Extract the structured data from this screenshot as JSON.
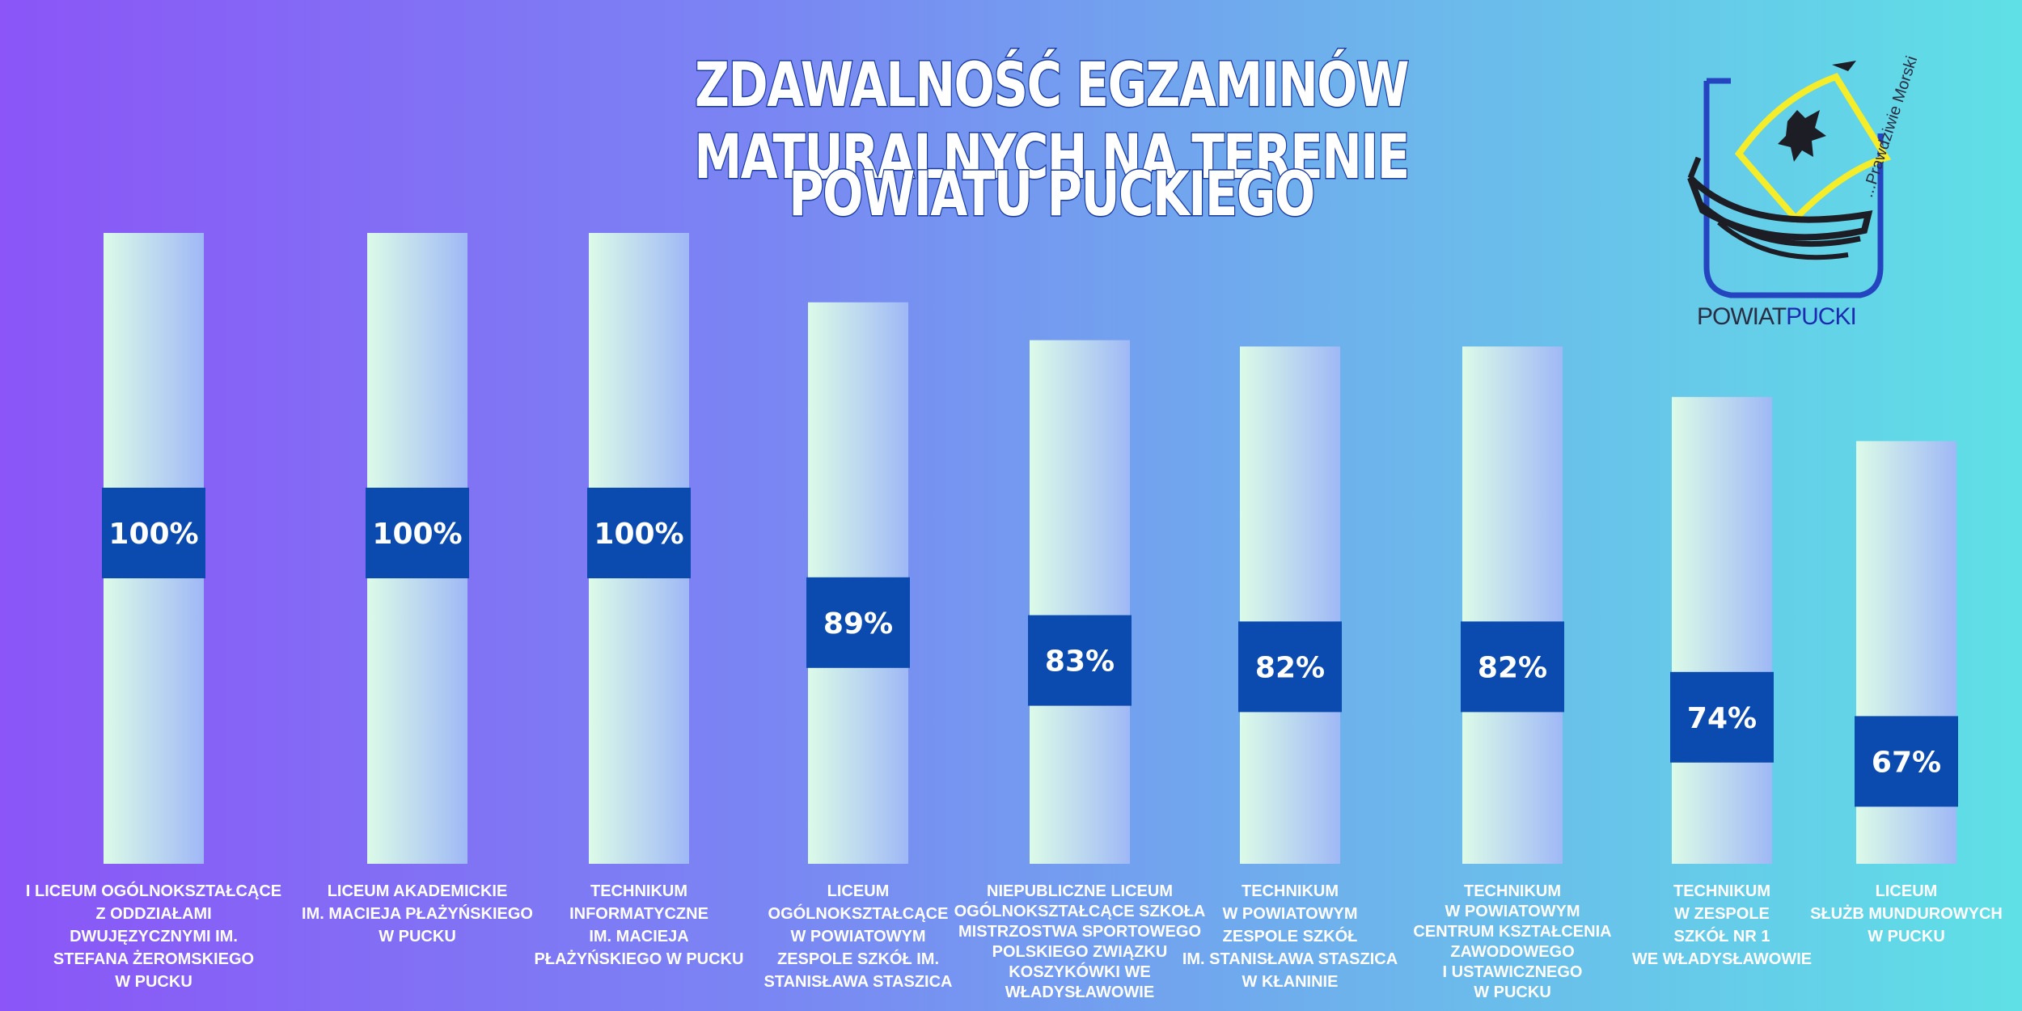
{
  "title": {
    "line1": "ZDAWALNOŚĆ EGZAMINÓW MATURALNYCH NA TERENIE",
    "line2": "POWIATU PUCKIEGO"
  },
  "logo": {
    "name_part1": "POWIAT",
    "name_part2": "PUCKI",
    "slogan": "...Prawdziwie Morski"
  },
  "colors": {
    "bar_top": "#dcfbe8",
    "bar_bottom": "#9fb8f6",
    "label_band": "#0b4aae"
  },
  "chart_data": {
    "type": "bar",
    "categories": [
      "I LICEUM OGÓLNOKSZTAŁCĄCE\nZ ODDZIAŁAMI\nDWUJĘZYCZNYMI IM.\nSTEFANA ŻEROMSKIEGO\nW PUCKU",
      "LICEUM AKADEMICKIE\nIM. MACIEJA PŁAŻYŃSKIEGO\nW PUCKU",
      "TECHNIKUM\nINFORMATYCZNE\nIM. MACIEJA\nPŁAŻYŃSKIEGO W PUCKU",
      "LICEUM\nOGÓLNOKSZTAŁCĄCE\nW POWIATOWYM\nZESPOLE SZKÓŁ IM.\nSTANISŁAWA STASZICA",
      "NIEPUBLICZNE LICEUM\nOGÓLNOKSZTAŁCĄCE SZKOŁA\nMISTRZOSTWA SPORTOWEGO\nPOLSKIEGO ZWIĄZKU\nKOSZYKÓWKI WE\nWŁADYSŁAWOWIE",
      "TECHNIKUM\nW POWIATOWYM\nZESPOLE SZKÓŁ\nIM. STANISŁAWA STASZICA\nW KŁANINIE",
      "TECHNIKUM\nW POWIATOWYM\nCENTRUM KSZTAŁCENIA\nZAWODOWEGO\nI USTAWICZNEGO\nW PUCKU",
      "TECHNIKUM\nW ZESPOLE\nSZKÓŁ NR 1\nWE WŁADYSŁAWOWIE",
      "LICEUM\nSŁUŻB MUNDUROWYCH\nW PUCKU"
    ],
    "values": [
      100,
      100,
      100,
      89,
      83,
      82,
      82,
      74,
      67
    ],
    "value_labels": [
      "100%",
      "100%",
      "100%",
      "89%",
      "83%",
      "82%",
      "82%",
      "74%",
      "67%"
    ],
    "unit": "%",
    "ylim": [
      0,
      100
    ],
    "grid": false,
    "legend": "none"
  }
}
